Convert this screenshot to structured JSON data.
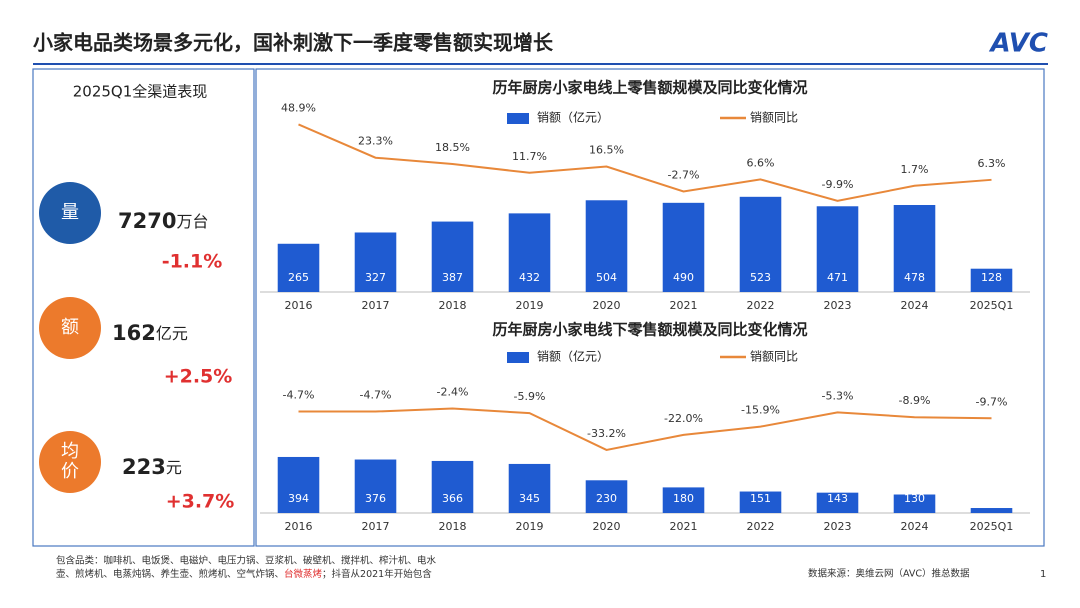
{
  "title": "小家电品类场景多元化，国补刺激下一季度零售额实现增长",
  "logo": "AVC",
  "panel": {
    "title": "2025Q1全渠道表现",
    "metrics": [
      {
        "icon": "量",
        "value": "7270",
        "unit": "万台",
        "change": "-1.1%"
      },
      {
        "icon": "额",
        "value": "162",
        "unit": "亿元",
        "change": "+2.5%"
      },
      {
        "icon": "均价",
        "value": "223",
        "unit": "元",
        "change": "+3.7%"
      }
    ]
  },
  "chart_data": [
    {
      "type": "bar",
      "title": "历年厨房小家电线上零售额规模及同比变化情况",
      "categories": [
        "2016",
        "2017",
        "2018",
        "2019",
        "2020",
        "2021",
        "2022",
        "2023",
        "2024",
        "2025Q1"
      ],
      "ylim": [
        0,
        1000
      ],
      "y2lim": [
        -80,
        60
      ],
      "series": [
        {
          "name": "销额（亿元）",
          "color": "#1f5bd1",
          "values": [
            265,
            327,
            387,
            432,
            504,
            490,
            523,
            471,
            478,
            128
          ]
        },
        {
          "name": "销额同比",
          "color": "#e8883a",
          "axis": "y2",
          "values": [
            48.9,
            23.3,
            18.5,
            11.7,
            16.5,
            -2.7,
            6.6,
            -9.9,
            1.7,
            6.3
          ],
          "value_labels": [
            "48.9%",
            "23.3%",
            "18.5%",
            "11.7%",
            "16.5%",
            "-2.7%",
            "6.6%",
            "-9.9%",
            "1.7%",
            "6.3%"
          ]
        }
      ]
    },
    {
      "type": "bar",
      "title": "历年厨房小家电线下零售额规模及同比变化情况",
      "categories": [
        "2016",
        "2017",
        "2018",
        "2019",
        "2020",
        "2021",
        "2022",
        "2023",
        "2024",
        "2025Q1"
      ],
      "ylim": [
        0,
        900
      ],
      "y2lim": [
        -80,
        15
      ],
      "series": [
        {
          "name": "销额（亿元）",
          "color": "#1f5bd1",
          "values": [
            394,
            376,
            366,
            345,
            230,
            180,
            151,
            143,
            130,
            35
          ]
        },
        {
          "name": "销额同比",
          "color": "#e8883a",
          "axis": "y2",
          "values": [
            -4.7,
            -4.7,
            -2.4,
            -5.9,
            -33.2,
            -22.0,
            -15.9,
            -5.3,
            -8.9,
            -9.7
          ],
          "value_labels": [
            "-4.7%",
            "-4.7%",
            "-2.4%",
            "-5.9%",
            "-33.2%",
            "-22.0%",
            "-15.9%",
            "-5.3%",
            "-8.9%",
            "-9.7%"
          ]
        }
      ]
    }
  ],
  "footnote": {
    "lead": "包含品类：咖啡机、电饭煲、电磁炉、电压力锅、豆浆机、破壁机、搅拌机、榨汁机、电水",
    "line2": "壶、煎烤机、电蒸炖锅、养生壶、煎烤机、空气炸锅、",
    "highlight": "台微蒸烤",
    "tail": "；抖音从2021年开始包含"
  },
  "source": "数据来源：奥维云网（AVC）推总数据",
  "page": "1"
}
